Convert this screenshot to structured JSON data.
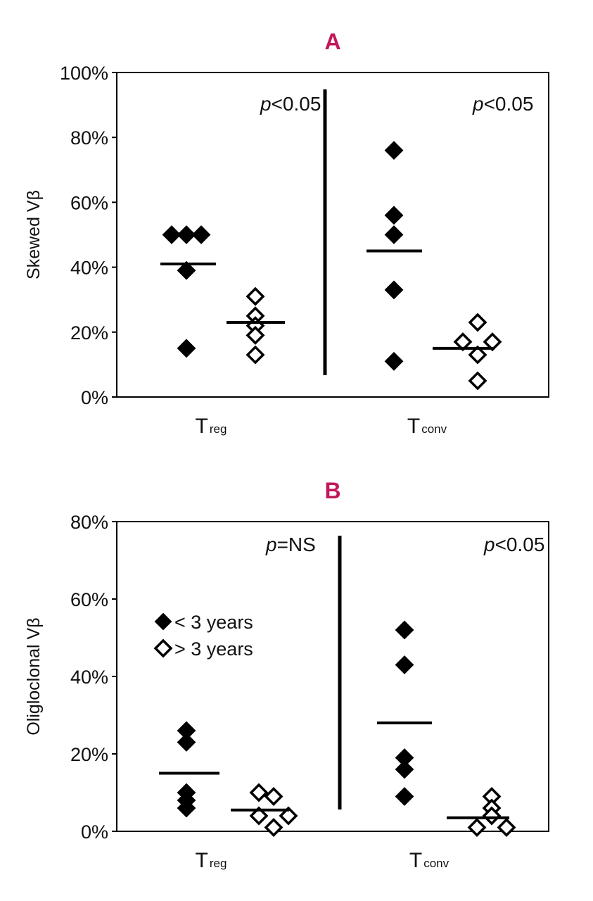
{
  "accent_color": "#c2185b",
  "chart_data": [
    {
      "type": "scatter",
      "title": "A",
      "ylabel": "Skewed Vβ",
      "ylim": [
        0,
        100
      ],
      "yticks": [
        "0%",
        "20%",
        "40%",
        "60%",
        "80%",
        "100%"
      ],
      "ytick_values": [
        0,
        20,
        40,
        60,
        80,
        100
      ],
      "groups": [
        {
          "category_main": "T",
          "category_sub": "reg",
          "pvalue_prefix": "p",
          "pvalue_rest": "<0.05",
          "series": [
            {
              "name": "< 3 years",
              "filled": true,
              "points": [
                [
                  0,
                  50
                ],
                [
                  1,
                  50
                ],
                [
                  2,
                  50
                ],
                [
                  1,
                  39
                ],
                [
                  1,
                  15
                ]
              ],
              "median": 41
            },
            {
              "name": "> 3 years",
              "filled": false,
              "points": [
                [
                  0,
                  31
                ],
                [
                  0,
                  25
                ],
                [
                  0,
                  22
                ],
                [
                  0,
                  19
                ],
                [
                  0,
                  13
                ]
              ],
              "median": 23
            }
          ]
        },
        {
          "category_main": "T",
          "category_sub": "conv",
          "pvalue_prefix": "p",
          "pvalue_rest": "<0.05",
          "series": [
            {
              "name": "< 3 years",
              "filled": true,
              "points": [
                [
                  0,
                  76
                ],
                [
                  0,
                  56
                ],
                [
                  0,
                  50
                ],
                [
                  0,
                  33
                ],
                [
                  0,
                  11
                ]
              ],
              "median": 45
            },
            {
              "name": "> 3 years",
              "filled": false,
              "points": [
                [
                  1,
                  23
                ],
                [
                  0,
                  17
                ],
                [
                  2,
                  17
                ],
                [
                  1,
                  13
                ],
                [
                  1,
                  5
                ]
              ],
              "median": 15
            }
          ]
        }
      ]
    },
    {
      "type": "scatter",
      "title": "B",
      "ylabel": "Oligloclonal Vβ",
      "ylim": [
        0,
        80
      ],
      "yticks": [
        "0%",
        "20%",
        "40%",
        "60%",
        "80%"
      ],
      "ytick_values": [
        0,
        20,
        40,
        60,
        80
      ],
      "legend": [
        {
          "label": "< 3 years",
          "filled": true
        },
        {
          "label": "> 3 years",
          "filled": false
        }
      ],
      "groups": [
        {
          "category_main": "T",
          "category_sub": "reg",
          "pvalue_prefix": "p",
          "pvalue_rest": "=NS",
          "series": [
            {
              "name": "< 3 years",
              "filled": true,
              "points": [
                [
                  0,
                  26
                ],
                [
                  0,
                  23
                ],
                [
                  0,
                  10
                ],
                [
                  0,
                  8
                ],
                [
                  0,
                  6
                ]
              ],
              "median": 15
            },
            {
              "name": "> 3 years",
              "filled": false,
              "points": [
                [
                  0,
                  10
                ],
                [
                  1,
                  9
                ],
                [
                  0,
                  4
                ],
                [
                  2,
                  4
                ],
                [
                  1,
                  1
                ]
              ],
              "median": 5.5
            }
          ]
        },
        {
          "category_main": "T",
          "category_sub": "conv",
          "pvalue_prefix": "p",
          "pvalue_rest": "<0.05",
          "series": [
            {
              "name": "< 3 years",
              "filled": true,
              "points": [
                [
                  0,
                  52
                ],
                [
                  0,
                  43
                ],
                [
                  0,
                  19
                ],
                [
                  0,
                  16
                ],
                [
                  0,
                  9
                ]
              ],
              "median": 28
            },
            {
              "name": "> 3 years",
              "filled": false,
              "points": [
                [
                  1,
                  9
                ],
                [
                  1,
                  6
                ],
                [
                  1,
                  4
                ],
                [
                  0,
                  1
                ],
                [
                  2,
                  1
                ]
              ],
              "median": 3.5
            }
          ]
        }
      ]
    }
  ]
}
